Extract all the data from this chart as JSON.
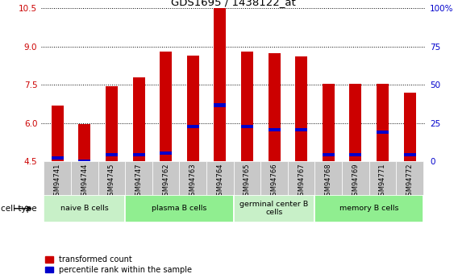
{
  "title": "GDS1695 / 1438122_at",
  "samples": [
    "GSM94741",
    "GSM94744",
    "GSM94745",
    "GSM94747",
    "GSM94762",
    "GSM94763",
    "GSM94764",
    "GSM94765",
    "GSM94766",
    "GSM94767",
    "GSM94768",
    "GSM94769",
    "GSM94771",
    "GSM94772"
  ],
  "red_values": [
    6.7,
    5.95,
    7.45,
    7.8,
    8.8,
    8.65,
    10.5,
    8.8,
    8.75,
    8.6,
    7.55,
    7.55,
    7.55,
    7.2
  ],
  "blue_values": [
    4.62,
    4.5,
    4.77,
    4.77,
    4.82,
    5.85,
    6.7,
    5.85,
    5.75,
    5.75,
    4.77,
    4.77,
    5.65,
    4.77
  ],
  "ymin": 4.5,
  "ymax": 10.5,
  "yticks": [
    4.5,
    6.0,
    7.5,
    9.0,
    10.5
  ],
  "y2min": 0,
  "y2max": 100,
  "y2ticks": [
    0,
    25,
    50,
    75,
    100
  ],
  "cell_groups": [
    {
      "label": "naive B cells",
      "start": 0,
      "end": 2,
      "color": "#c8f0c8"
    },
    {
      "label": "plasma B cells",
      "start": 3,
      "end": 6,
      "color": "#90ee90"
    },
    {
      "label": "germinal center B\ncells",
      "start": 7,
      "end": 9,
      "color": "#c8f0c8"
    },
    {
      "label": "memory B cells",
      "start": 10,
      "end": 13,
      "color": "#90ee90"
    }
  ],
  "bar_color": "#cc0000",
  "marker_color": "#0000cc",
  "bar_width": 0.45,
  "tick_label_color": "#cc0000",
  "y2_label_color": "#0000cc",
  "legend_red": "transformed count",
  "legend_blue": "percentile rank within the sample",
  "cell_type_label": "cell type",
  "tick_area_bg": "#c8c8c8",
  "xlim_left": -0.6,
  "xlim_right": 13.6
}
